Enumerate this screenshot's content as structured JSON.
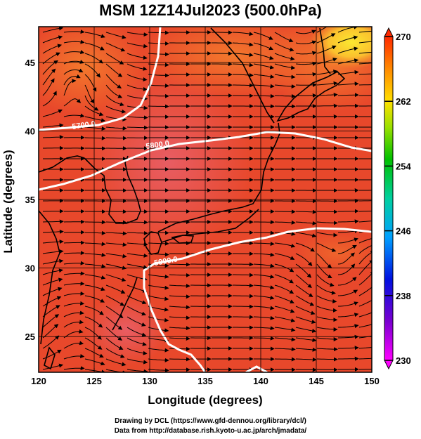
{
  "title": "MSM 12Z14Jul2023 (500.0hPa)",
  "axes": {
    "xlabel": "Longitude (degrees)",
    "ylabel": "Latitude  (degrees)",
    "x_ticks": [
      "120",
      "125",
      "130",
      "135",
      "140",
      "145",
      "150"
    ],
    "y_ticks": [
      "25",
      "30",
      "35",
      "40",
      "45"
    ],
    "xlim": [
      120,
      150
    ],
    "ylim": [
      22.4,
      47.6
    ]
  },
  "colorbar": {
    "labels": [
      "270",
      "262",
      "254",
      "246",
      "238",
      "230"
    ],
    "range": [
      230,
      270
    ]
  },
  "contour_labels": [
    "5700.0",
    "5800.0",
    "5900.0"
  ],
  "credits": {
    "line1": "Drawing by DCL (https://www.gfd-dennou.org/library/dcl/)",
    "line2": "Data from http://database.rish.kyoto-u.ac.jp/arch/jmadata/"
  },
  "colors": {
    "field_main": "#e8482b",
    "field_warm": "#f25a2c",
    "field_pink": "#e85b5f",
    "field_yellow": "#fbe52e",
    "contour": "#ffffff"
  }
}
